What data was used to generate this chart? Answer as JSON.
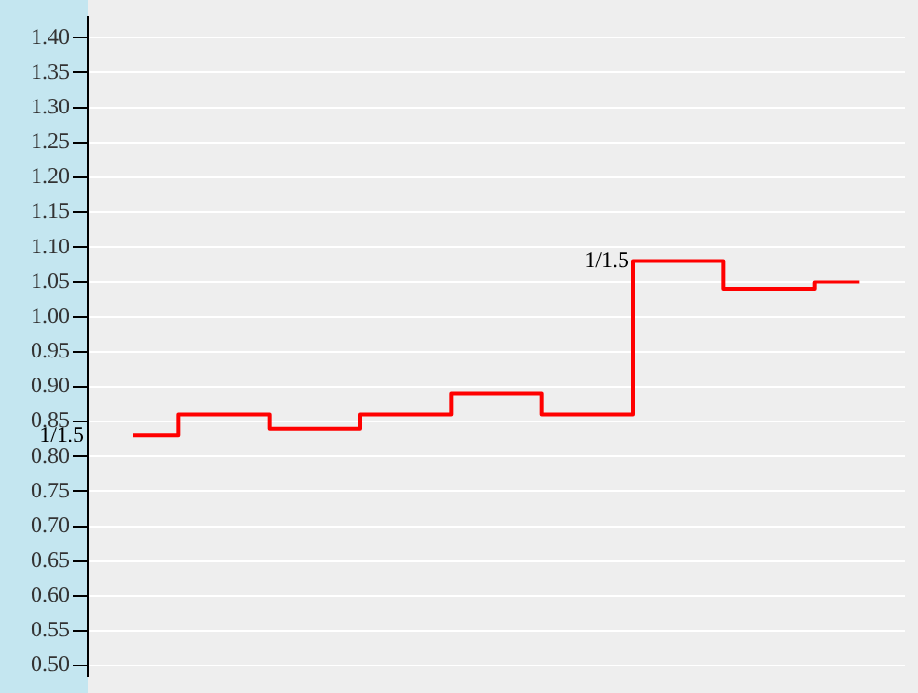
{
  "chart_data": {
    "type": "step",
    "categories": [
      null,
      null,
      null,
      null,
      null,
      null,
      null,
      null,
      null
    ],
    "series": [
      {
        "color": "#ff0000",
        "values": [
          0.83,
          0.86,
          0.84,
          0.86,
          0.89,
          0.86,
          1.08,
          1.04,
          1.05
        ]
      }
    ],
    "ylim": [
      0.485,
      1.43
    ],
    "yticks": [
      {
        "value": 0.5,
        "label": "0.50"
      },
      {
        "value": 0.55,
        "label": "0.55"
      },
      {
        "value": 0.6,
        "label": "0.60"
      },
      {
        "value": 0.65,
        "label": "0.65"
      },
      {
        "value": 0.7,
        "label": "0.70"
      },
      {
        "value": 0.75,
        "label": "0.75"
      },
      {
        "value": 0.8,
        "label": "0.80"
      },
      {
        "value": 0.85,
        "label": "0.85"
      },
      {
        "value": 0.9,
        "label": "0.90"
      },
      {
        "value": 0.95,
        "label": "0.95"
      },
      {
        "value": 1.0,
        "label": "1.00"
      },
      {
        "value": 1.05,
        "label": "1.05"
      },
      {
        "value": 1.1,
        "label": "1.10"
      },
      {
        "value": 1.15,
        "label": "1.15"
      },
      {
        "value": 1.2,
        "label": "1.20"
      },
      {
        "value": 1.25,
        "label": "1.25"
      },
      {
        "value": 1.3,
        "label": "1.30"
      },
      {
        "value": 1.35,
        "label": "1.35"
      },
      {
        "value": 1.4,
        "label": "1.40"
      }
    ],
    "grid": "y",
    "legend": false,
    "tick_labels": "y",
    "marker": "none",
    "annotations": [
      "1/1.5",
      "1/1.5"
    ]
  }
}
